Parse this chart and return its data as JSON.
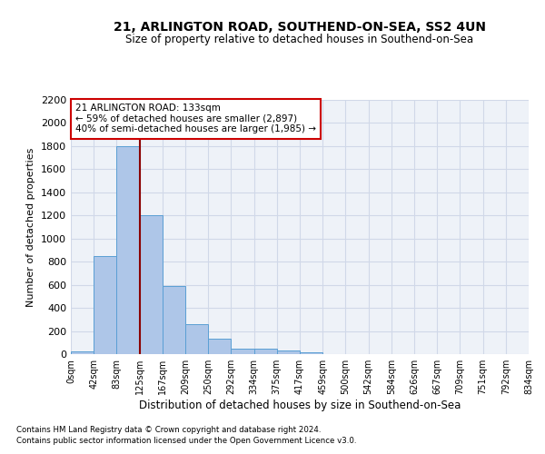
{
  "title_line1": "21, ARLINGTON ROAD, SOUTHEND-ON-SEA, SS2 4UN",
  "title_line2": "Size of property relative to detached houses in Southend-on-Sea",
  "xlabel": "Distribution of detached houses by size in Southend-on-Sea",
  "ylabel": "Number of detached properties",
  "bar_values": [
    25,
    845,
    1800,
    1200,
    590,
    260,
    130,
    50,
    45,
    30,
    15,
    0,
    0,
    0,
    0,
    0,
    0,
    0,
    0,
    0
  ],
  "bar_labels": [
    "0sqm",
    "42sqm",
    "83sqm",
    "125sqm",
    "167sqm",
    "209sqm",
    "250sqm",
    "292sqm",
    "334sqm",
    "375sqm",
    "417sqm",
    "459sqm",
    "500sqm",
    "542sqm",
    "584sqm",
    "626sqm",
    "667sqm",
    "709sqm",
    "751sqm",
    "792sqm",
    "834sqm"
  ],
  "bar_color": "#aec6e8",
  "bar_edge_color": "#5a9fd4",
  "grid_color": "#d0d8e8",
  "background_color": "#eef2f8",
  "vline_x": 3.0,
  "vline_color": "#8b0000",
  "annotation_text": "21 ARLINGTON ROAD: 133sqm\n← 59% of detached houses are smaller (2,897)\n40% of semi-detached houses are larger (1,985) →",
  "annotation_box_color": "white",
  "annotation_box_edge": "#cc0000",
  "ylim": [
    0,
    2200
  ],
  "yticks": [
    0,
    200,
    400,
    600,
    800,
    1000,
    1200,
    1400,
    1600,
    1800,
    2000,
    2200
  ],
  "footnote1": "Contains HM Land Registry data © Crown copyright and database right 2024.",
  "footnote2": "Contains public sector information licensed under the Open Government Licence v3.0."
}
